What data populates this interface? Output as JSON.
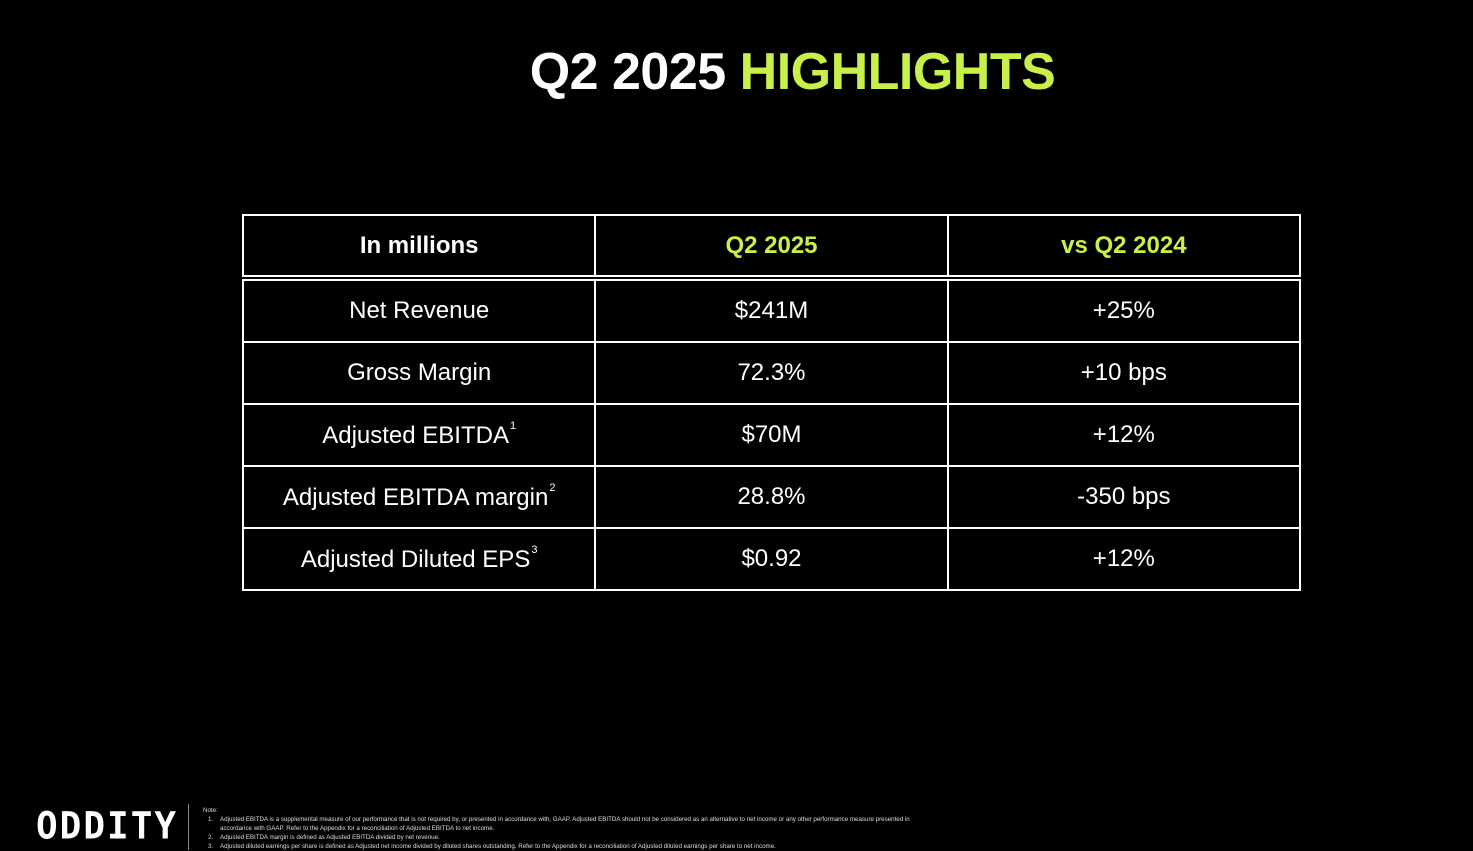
{
  "header": {
    "title_white": "Q2 2025",
    "title_green": "HIGHLIGHTS"
  },
  "table": {
    "columns": [
      {
        "text": "In millions",
        "green": false
      },
      {
        "text": "Q2 2025",
        "green": true
      },
      {
        "text": "vs Q2 2024",
        "green": true
      }
    ],
    "rows": [
      {
        "label": "Net Revenue",
        "sup": null,
        "value": "$241M",
        "change": "+25%"
      },
      {
        "label": "Gross Margin",
        "sup": null,
        "value": "72.3%",
        "change": "+10 bps"
      },
      {
        "label": "Adjusted EBITDA",
        "sup": "1",
        "value": "$70M",
        "change": "+12%"
      },
      {
        "label": "Adjusted EBITDA margin",
        "sup": "2",
        "value": "28.8%",
        "change": "-350 bps"
      },
      {
        "label": "Adjusted Diluted EPS",
        "sup": "3",
        "value": "$0.92",
        "change": "+12%"
      }
    ]
  },
  "footer": {
    "logo": "ODDITY",
    "notes_heading": "Note:",
    "notes": [
      {
        "marker": "1.",
        "text": "Adjusted EBITDA is a supplemental measure of our performance that is not required by, or presented in accordance with, GAAP. Adjusted EBITDA should not be considered as an alternative to net income or any other performance measure presented in accordance with GAAP. Refer to the Appendix for a reconciliation of Adjusted EBITDA to net income."
      },
      {
        "marker": "2.",
        "text": "Adjusted EBITDA margin is defined as Adjusted EBITDA divided by net revenue."
      },
      {
        "marker": "3.",
        "text": "Adjusted diluted earnings per share is defined as Adjusted net income divided by diluted shares outstanding. Refer to the Appendix for a reconciliation of Adjusted diluted earnings per share to net income."
      }
    ]
  }
}
